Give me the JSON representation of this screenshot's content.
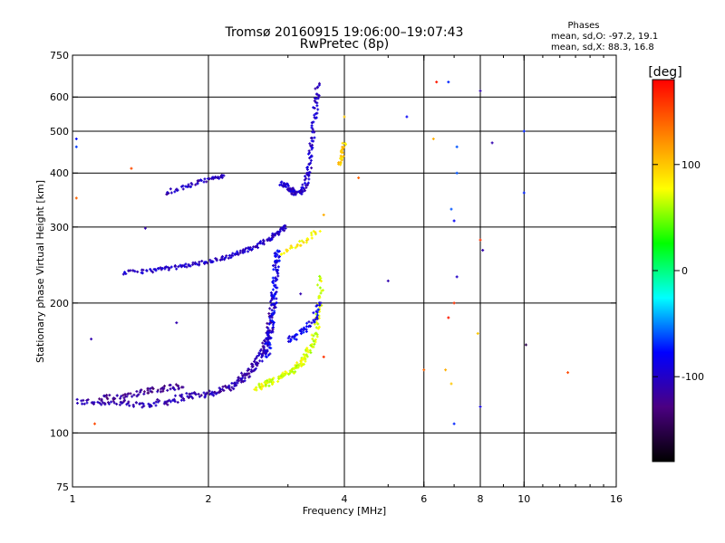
{
  "chart_data": {
    "type": "scatter",
    "title": "Tromsø 20160915 19:06:00–19:07:43",
    "subtitle": "RwPretec (8p)",
    "xlabel": "Frequency [MHz]",
    "ylabel": "Stationary phase Virtual Height [km]",
    "x_scale": "log",
    "y_scale": "log",
    "xlim": [
      1,
      16
    ],
    "ylim": [
      75,
      750
    ],
    "x_ticks": [
      1,
      2,
      4,
      6,
      8,
      10,
      16
    ],
    "y_ticks": [
      75,
      100,
      200,
      300,
      400,
      500,
      600,
      750
    ],
    "grid_x": [
      2,
      4,
      6,
      8,
      10
    ],
    "grid_y": [
      100,
      200,
      300,
      400,
      500,
      600
    ],
    "grid": true,
    "colorbar": {
      "label": "[deg]",
      "range": [
        -180,
        180
      ],
      "ticks": [
        -100,
        0,
        100
      ],
      "colors": [
        "#000000",
        "#4b0082",
        "#0000ff",
        "#00ffff",
        "#00ff00",
        "#ffff00",
        "#ff8000",
        "#ff0000"
      ]
    },
    "stats": {
      "heading": "Phases",
      "line_o": "mean, sd,O: -97.2, 19.1",
      "line_x": "mean, sd,X:  88.3, 16.8"
    },
    "traces": [
      {
        "x": [
          1.02,
          1.2,
          1.4,
          1.6,
          1.8,
          2.0,
          2.2,
          2.35,
          2.45,
          2.55,
          2.65,
          2.7,
          2.75,
          2.8
        ],
        "y": [
          118,
          118,
          116,
          118,
          122,
          123,
          127,
          132,
          138,
          145,
          155,
          165,
          180,
          210
        ],
        "phase": -110,
        "spread": 0.035,
        "density": 7
      },
      {
        "x": [
          2.7,
          2.75,
          2.8,
          2.82,
          2.85
        ],
        "y": [
          150,
          175,
          210,
          240,
          265
        ],
        "phase": -85,
        "spread": 0.03,
        "density": 8
      },
      {
        "x": [
          1.15,
          1.3,
          1.45,
          1.6,
          1.75
        ],
        "y": [
          120,
          122,
          125,
          127,
          128
        ],
        "phase": -120,
        "spread": 0.03,
        "density": 6
      },
      {
        "x": [
          1.3,
          1.5,
          1.7,
          1.9,
          2.1,
          2.3,
          2.5,
          2.7,
          2.85,
          2.95
        ],
        "y": [
          235,
          238,
          242,
          247,
          252,
          260,
          268,
          280,
          290,
          300
        ],
        "phase": -100,
        "spread": 0.02,
        "density": 6
      },
      {
        "x": [
          2.9,
          3.0,
          3.1,
          3.2,
          3.3,
          3.35,
          3.4,
          3.45,
          3.5
        ],
        "y": [
          380,
          370,
          360,
          360,
          380,
          420,
          480,
          560,
          640
        ],
        "phase": -100,
        "spread": 0.025,
        "density": 6
      },
      {
        "x": [
          1.6,
          1.75,
          1.9,
          2.05,
          2.15
        ],
        "y": [
          360,
          370,
          380,
          388,
          395
        ],
        "phase": -105,
        "spread": 0.02,
        "density": 4
      },
      {
        "x": [
          2.55,
          2.7,
          2.9,
          3.1,
          3.25,
          3.4,
          3.5,
          3.55
        ],
        "y": [
          127,
          130,
          135,
          140,
          148,
          160,
          185,
          230
        ],
        "phase": 70,
        "spread": 0.03,
        "density": 7
      },
      {
        "x": [
          3.0,
          3.15,
          3.3,
          3.45,
          3.5
        ],
        "y": [
          165,
          168,
          175,
          185,
          200
        ],
        "phase": -85,
        "spread": 0.03,
        "density": 4
      },
      {
        "x": [
          2.9,
          3.1,
          3.3,
          3.5
        ],
        "y": [
          260,
          270,
          280,
          295
        ],
        "phase": 85,
        "spread": 0.02,
        "density": 3
      },
      {
        "x": [
          3.9,
          3.95,
          4.0
        ],
        "y": [
          420,
          440,
          470
        ],
        "phase": 95,
        "spread": 0.02,
        "density": 4
      }
    ],
    "points": [
      {
        "x": 1.02,
        "y": 480,
        "phase": -75
      },
      {
        "x": 1.02,
        "y": 460,
        "phase": -65
      },
      {
        "x": 1.02,
        "y": 350,
        "phase": 140
      },
      {
        "x": 1.35,
        "y": 410,
        "phase": 150
      },
      {
        "x": 1.45,
        "y": 298,
        "phase": -110
      },
      {
        "x": 1.1,
        "y": 165,
        "phase": -110
      },
      {
        "x": 1.7,
        "y": 180,
        "phase": -110
      },
      {
        "x": 1.12,
        "y": 105,
        "phase": 150
      },
      {
        "x": 5.0,
        "y": 225,
        "phase": -110
      },
      {
        "x": 5.5,
        "y": 540,
        "phase": -80
      },
      {
        "x": 6.4,
        "y": 650,
        "phase": 170
      },
      {
        "x": 6.8,
        "y": 650,
        "phase": -70
      },
      {
        "x": 7.1,
        "y": 460,
        "phase": -60
      },
      {
        "x": 6.9,
        "y": 330,
        "phase": -60
      },
      {
        "x": 7.0,
        "y": 310,
        "phase": -80
      },
      {
        "x": 7.1,
        "y": 230,
        "phase": -100
      },
      {
        "x": 7.0,
        "y": 200,
        "phase": 160
      },
      {
        "x": 6.8,
        "y": 185,
        "phase": 170
      },
      {
        "x": 6.7,
        "y": 140,
        "phase": 110
      },
      {
        "x": 6.9,
        "y": 130,
        "phase": 100
      },
      {
        "x": 7.0,
        "y": 105,
        "phase": -70
      },
      {
        "x": 8.0,
        "y": 620,
        "phase": -110
      },
      {
        "x": 8.5,
        "y": 470,
        "phase": -110
      },
      {
        "x": 8.0,
        "y": 280,
        "phase": 160
      },
      {
        "x": 8.1,
        "y": 265,
        "phase": -110
      },
      {
        "x": 8.0,
        "y": 115,
        "phase": -90
      },
      {
        "x": 7.9,
        "y": 170,
        "phase": 100
      },
      {
        "x": 10.0,
        "y": 360,
        "phase": -70
      },
      {
        "x": 10.1,
        "y": 160,
        "phase": -150
      },
      {
        "x": 12.5,
        "y": 138,
        "phase": 150
      },
      {
        "x": 6.0,
        "y": 140,
        "phase": 140
      },
      {
        "x": 7.1,
        "y": 400,
        "phase": -60
      },
      {
        "x": 4.3,
        "y": 390,
        "phase": 140
      },
      {
        "x": 3.6,
        "y": 150,
        "phase": 160
      },
      {
        "x": 3.2,
        "y": 210,
        "phase": -110
      },
      {
        "x": 3.6,
        "y": 320,
        "phase": 110
      },
      {
        "x": 4.0,
        "y": 540,
        "phase": 100
      },
      {
        "x": 10.0,
        "y": 500,
        "phase": -70
      },
      {
        "x": 6.3,
        "y": 480,
        "phase": 110
      }
    ]
  }
}
